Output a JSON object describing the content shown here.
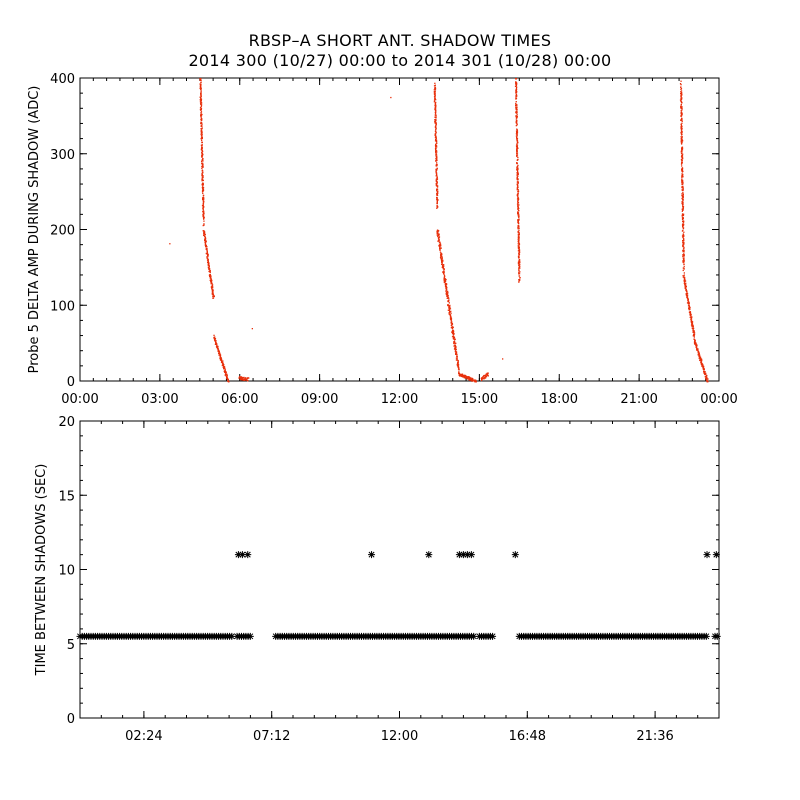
{
  "title": "RBSP–A SHORT ANT. SHADOW TIMES",
  "subtitle": "2014 300 (10/27) 00:00 to 2014 301 (10/28) 00:00",
  "colors": {
    "points": "#e8300c",
    "axes": "#000000",
    "markers": "#000000"
  },
  "chart_data": [
    {
      "type": "scatter",
      "ylabel": "Probe 5 DELTA AMP DURING SHADOW (ADC)",
      "xlabel": "",
      "xlim": [
        0,
        24
      ],
      "ylim": [
        0,
        400
      ],
      "x_ticks": [
        "00:00",
        "03:00",
        "06:00",
        "09:00",
        "12:00",
        "15:00",
        "18:00",
        "21:00",
        "00:00"
      ],
      "y_ticks": [
        "0",
        "100",
        "200",
        "300",
        "400"
      ],
      "grid": false,
      "series": [
        {
          "color": "#e8300c",
          "segments": [
            {
              "x0": 4.5,
              "x1": 4.62,
              "y0": 400,
              "y1": 210
            },
            {
              "x0": 4.62,
              "x1": 5.0,
              "y0": 200,
              "y1": 110
            },
            {
              "x0": 5.0,
              "x1": 5.55,
              "y0": 60,
              "y1": 0
            },
            {
              "x0": 5.95,
              "x1": 6.3,
              "y0": 5,
              "y1": 3
            },
            {
              "x0": 13.3,
              "x1": 13.4,
              "y0": 390,
              "y1": 230
            },
            {
              "x0": 13.4,
              "x1": 14.2,
              "y0": 200,
              "y1": 15
            },
            {
              "x0": 14.2,
              "x1": 14.85,
              "y0": 10,
              "y1": 0
            },
            {
              "x0": 15.05,
              "x1": 15.3,
              "y0": 3,
              "y1": 10
            },
            {
              "x0": 16.35,
              "x1": 16.48,
              "y0": 400,
              "y1": 135
            },
            {
              "x0": 22.55,
              "x1": 22.65,
              "y0": 390,
              "y1": 150
            },
            {
              "x0": 22.65,
              "x1": 23.05,
              "y0": 140,
              "y1": 60
            },
            {
              "x0": 23.05,
              "x1": 23.55,
              "y0": 55,
              "y1": 0
            }
          ],
          "isolated": [
            {
              "x": 3.35,
              "y": 182
            },
            {
              "x": 6.45,
              "y": 70
            },
            {
              "x": 11.65,
              "y": 375
            },
            {
              "x": 15.85,
              "y": 30
            }
          ]
        }
      ]
    },
    {
      "type": "scatter",
      "ylabel": "TIME BETWEEN SHADOWS (SEC)",
      "xlabel": "",
      "xlim": [
        0,
        24
      ],
      "ylim": [
        0,
        20
      ],
      "x_ticks": [
        "02:24",
        "07:12",
        "12:00",
        "16:48",
        "21:36"
      ],
      "x_tick_values": [
        2.4,
        7.2,
        12.0,
        16.8,
        21.6
      ],
      "y_ticks": [
        "0",
        "5",
        "10",
        "15",
        "20"
      ],
      "grid": false,
      "series": [
        {
          "marker": "asterisk",
          "color": "#000000",
          "baseline_value": 5.5,
          "baseline_ranges": [
            [
              0.0,
              5.75
            ],
            [
              5.9,
              6.4
            ],
            [
              7.35,
              14.85
            ],
            [
              15.0,
              15.5
            ],
            [
              16.5,
              23.6
            ],
            [
              23.85,
              24.0
            ]
          ],
          "high_value": 11,
          "high_points": [
            5.95,
            6.1,
            6.3,
            10.95,
            13.1,
            14.25,
            14.4,
            14.55,
            14.7,
            16.35,
            23.55,
            23.9
          ]
        }
      ]
    }
  ]
}
